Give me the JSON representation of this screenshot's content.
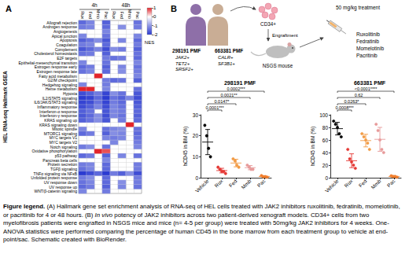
{
  "chart_data": [
    {
      "type": "heatmap",
      "panel": "A",
      "title": "HEL RNA-seq Hallmark GSEA",
      "groups": [
        {
          "label": "4h",
          "categories": [
            "Rux",
            "Fed",
            "Mmb",
            "Pac"
          ]
        },
        {
          "label": "48h",
          "categories": [
            "Rux",
            "Fed",
            "Mmb",
            "Pac"
          ]
        }
      ],
      "rows": [
        "Allograft rejection",
        "Androgen response",
        "Angiogenesis",
        "Apical junction",
        "Apoptosis",
        "Coagulation",
        "Complement",
        "Cholesterol homeostasis",
        "E2F targets",
        "Epithelial-mesenchymal transition",
        "Estrogen response early",
        "Estrogen response late",
        "Fatty acid metabolism",
        "G2/M checkpoint",
        "Hedgehog signaling",
        "Heme metabolism",
        "Hypoxia",
        "IL2/STAT5 signaling",
        "IL6/JAK/STAT3 signaling",
        "Inflammatory response",
        "Interferon-α response",
        "Interferon-γ response",
        "KRAS signaling up",
        "KRAS signaling down",
        "Mitotic spindle",
        "MTORC1 signaling",
        "MYC targets V1",
        "MYC targets V2",
        "Notch signaling",
        "Oxidative phosphorylation",
        "p53 pathway",
        "Pancreas beta cells",
        "Protein secretion",
        "TGFβ signaling",
        "TNFα signaling via NFκB",
        "Unfolded protein response",
        "UV response down",
        "UV response up",
        "WNT/β-catenin signaling"
      ],
      "cells": [
        [
          -1.5,
          -1.2,
          null,
          -1.6,
          null,
          null,
          null,
          -1.4
        ],
        [
          -1.3,
          -1.2,
          null,
          -1.5,
          null,
          -1.1,
          null,
          -1.3
        ],
        [
          null,
          null,
          null,
          -1.2,
          null,
          null,
          null,
          null
        ],
        [
          -1.2,
          null,
          null,
          -1.4,
          null,
          null,
          null,
          -1.2
        ],
        [
          -1.6,
          -1.4,
          -1.1,
          -1.7,
          null,
          -1.2,
          null,
          -1.5
        ],
        [
          -1.3,
          -1.2,
          null,
          -1.5,
          null,
          null,
          null,
          -1.3
        ],
        [
          -1.7,
          -1.5,
          -1.2,
          -1.8,
          -1.1,
          -1.3,
          null,
          -1.6
        ],
        [
          -1.4,
          -1.3,
          null,
          -1.6,
          null,
          null,
          null,
          -1.4
        ],
        [
          null,
          null,
          null,
          -1.3,
          -1.4,
          -1.3,
          null,
          -1.5
        ],
        [
          -1.2,
          null,
          null,
          -1.4,
          null,
          null,
          null,
          -1.2
        ],
        [
          -1.5,
          -1.3,
          null,
          -1.6,
          null,
          -1.2,
          null,
          -1.4
        ],
        [
          -1.4,
          -1.2,
          null,
          -1.5,
          null,
          -1.1,
          null,
          -1.3
        ],
        [
          null,
          null,
          1.2,
          null,
          null,
          null,
          null,
          -1.2
        ],
        [
          null,
          null,
          null,
          -1.3,
          -1.5,
          -1.4,
          null,
          -1.6
        ],
        [
          -1.2,
          null,
          null,
          -1.3,
          null,
          null,
          null,
          null
        ],
        [
          1.5,
          1.3,
          null,
          -1.2,
          null,
          null,
          null,
          -1.4
        ],
        [
          -1.8,
          -1.6,
          -1.3,
          -1.9,
          -1.1,
          -1.4,
          null,
          -1.7
        ],
        [
          -2.0,
          -1.9,
          -1.5,
          -2.0,
          -1.4,
          -1.6,
          -1.2,
          -1.8
        ],
        [
          -1.9,
          -1.8,
          -1.4,
          -1.9,
          -1.3,
          -1.5,
          null,
          -1.7
        ],
        [
          -1.8,
          -1.6,
          -1.2,
          -1.8,
          -1.2,
          -1.4,
          null,
          -1.6
        ],
        [
          -1.6,
          -1.4,
          null,
          -1.7,
          -1.2,
          -1.3,
          null,
          -1.5
        ],
        [
          -1.7,
          -1.5,
          -1.1,
          -1.8,
          -1.2,
          -1.4,
          null,
          -1.6
        ],
        [
          -1.6,
          -1.4,
          -1.1,
          -1.7,
          null,
          -1.3,
          null,
          -1.5
        ],
        [
          null,
          null,
          null,
          null,
          null,
          null,
          1.1,
          null
        ],
        [
          -1.2,
          null,
          null,
          -1.4,
          -1.2,
          -1.1,
          null,
          -1.4
        ],
        [
          -1.5,
          -1.3,
          null,
          -1.6,
          -1.1,
          -1.2,
          null,
          -1.5
        ],
        [
          null,
          null,
          null,
          -1.2,
          -1.3,
          -1.2,
          null,
          -1.4
        ],
        [
          null,
          null,
          null,
          null,
          -1.2,
          null,
          null,
          -1.3
        ],
        [
          -1.3,
          -1.1,
          null,
          -1.4,
          null,
          null,
          null,
          -1.2
        ],
        [
          null,
          null,
          1.6,
          0.8,
          null,
          null,
          null,
          null
        ],
        [
          -1.5,
          -1.3,
          null,
          -1.6,
          null,
          -1.2,
          null,
          -1.4
        ],
        [
          null,
          null,
          null,
          -1.2,
          null,
          null,
          null,
          null
        ],
        [
          -1.3,
          -1.2,
          null,
          -1.5,
          null,
          null,
          null,
          -1.3
        ],
        [
          -1.4,
          -1.2,
          null,
          -1.5,
          null,
          null,
          null,
          -1.3
        ],
        [
          -2.0,
          -1.8,
          -1.5,
          -2.0,
          -1.3,
          -1.6,
          -1.1,
          -1.8
        ],
        [
          -1.3,
          -1.1,
          null,
          -1.5,
          null,
          null,
          null,
          -1.3
        ],
        [
          -1.4,
          -1.2,
          null,
          -1.5,
          null,
          -1.1,
          null,
          -1.3
        ],
        [
          -1.5,
          -1.3,
          null,
          -1.6,
          null,
          -1.2,
          null,
          -1.4
        ],
        [
          -1.2,
          null,
          null,
          -1.3,
          null,
          null,
          null,
          null
        ]
      ],
      "colorbar": {
        "label": "NES",
        "range": [
          -2,
          1
        ],
        "ticks": [
          1,
          0,
          -1,
          -2
        ]
      }
    },
    {
      "type": "scatter",
      "panel": "B",
      "title": "298191 PMF",
      "ylabel": "hCD45 in BM (%)",
      "categories": [
        "Vehicle",
        "Rux",
        "Fed",
        "Mmb",
        "Pac"
      ],
      "groups": [
        {
          "color": "#000000",
          "values": [
            25,
            20,
            14,
            10
          ],
          "mean": 17,
          "error": 6
        },
        {
          "color": "#e53935",
          "values": [
            5,
            4,
            3,
            3,
            2
          ],
          "mean": 3.4,
          "error": 1.1
        },
        {
          "color": "#f29b45",
          "values": [
            9,
            8,
            6,
            5
          ],
          "mean": 7,
          "error": 1.8
        },
        {
          "color": "#e79a9a",
          "values": [
            6,
            5,
            4,
            4
          ],
          "mean": 4.8,
          "error": 1
        },
        {
          "color": "#f07f2e",
          "values": [
            1,
            0.5,
            0.5,
            0.3
          ],
          "mean": 0.6,
          "error": 0.3
        }
      ],
      "marker": "circle",
      "ylim": [
        0,
        30
      ],
      "yticks": [
        0,
        10,
        20,
        30
      ],
      "comparisons": [
        {
          "from": "Vehicle",
          "to": "Rux",
          "label": "0.0001***"
        },
        {
          "from": "Vehicle",
          "to": "Fed",
          "label": "0.0147*"
        },
        {
          "from": "Vehicle",
          "to": "Mmb",
          "label": "0.0021**"
        },
        {
          "from": "Vehicle",
          "to": "Pac",
          "label": "0.0002***"
        }
      ]
    },
    {
      "type": "scatter",
      "title": "663381 PMF",
      "ylabel": "hCD45 in BM (%)",
      "categories": [
        "Vehicle",
        "Rux",
        "Fed",
        "Mmb",
        "Pac"
      ],
      "groups": [
        {
          "color": "#000000",
          "values": [
            90,
            85,
            80,
            70,
            65
          ],
          "mean": 78,
          "error": 10
        },
        {
          "color": "#e53935",
          "values": [
            45,
            30,
            25,
            20,
            15
          ],
          "mean": 27,
          "error": 11
        },
        {
          "color": "#f29b45",
          "values": [
            70,
            65,
            60,
            55,
            45
          ],
          "mean": 59,
          "error": 10
        },
        {
          "color": "#e79a9a",
          "values": [
            85,
            75,
            60,
            45,
            40
          ],
          "mean": 61,
          "error": 19
        },
        {
          "color": "#f07f2e",
          "values": [
            3,
            2,
            2,
            1
          ],
          "mean": 2,
          "error": 0.8
        }
      ],
      "marker": "circle",
      "ylim": [
        0,
        100
      ],
      "yticks": [
        0,
        20,
        40,
        60,
        80,
        100
      ],
      "comparisons": [
        {
          "from": "Vehicle",
          "to": "Rux",
          "label": "0.0008***"
        },
        {
          "from": "Vehicle",
          "to": "Fed",
          "label": "0.0263*"
        },
        {
          "from": "Vehicle",
          "to": "Mmb",
          "label": "0.62"
        },
        {
          "from": "Vehicle",
          "to": "Pac",
          "label": "<0.0001****"
        }
      ]
    }
  ],
  "schematic": {
    "patients": [
      {
        "id": "298191 PMF",
        "mutations": [
          "JAK2+",
          "TET2+",
          "SRSF2+"
        ]
      },
      {
        "id": "663381 PMF",
        "mutations": [
          "CALR+",
          "SF3B1+"
        ]
      }
    ],
    "cells": "CD34+",
    "step": "Engraftment",
    "host": "NSGS mouse",
    "dose": "50 mg/kg treatment",
    "drugs": [
      "Ruxolitinib",
      "Fedratinib",
      "Momelotinib",
      "Pacritinib"
    ]
  },
  "caption": [
    {
      "text": "Figure legend.",
      "bold": true
    },
    {
      "text": " (A) Hallmark gene set enrichment analysis of RNA-seq of HEL cells treated with JAK2 inhibitors ruxolitinib, fedratinib, momelotinib, or pacritinib for 4 or 48 hours. (B) "
    },
    {
      "text": "In vivo",
      "italic": true
    },
    {
      "text": " potency of JAK2 inhibitors across two patient-derived xenograft models. CD34+ cells from two myelofibrosis patients were engrafted in NSGS mice and mice (n= 4-5 per group) were treated with 50mg/kg JAK2 inhibitors for 4 weeks. One-ANOVA statistics were performed comparing the percentage of human CD45 in the bone marrow from each treatment group to vehicle at end-point/sac. Schematic created with BioRender."
    }
  ]
}
